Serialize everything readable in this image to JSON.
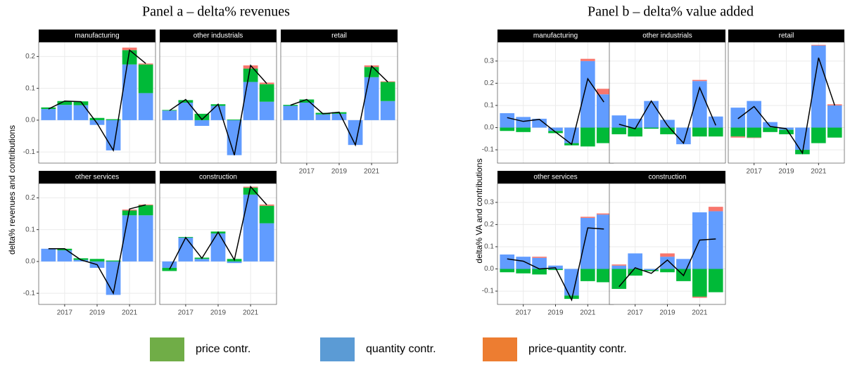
{
  "chart_data": [
    {
      "type": "bar",
      "title": "Panel a – delta% revenues",
      "y_label": "delta% revenues and contributions",
      "xlim": [
        2015.4,
        2022.6
      ],
      "xticks": [
        2017,
        2019,
        2021
      ],
      "ylim": [
        -0.135,
        0.245
      ],
      "yticks": [
        -0.1,
        {
          "value": 0,
          "label": "0.0"
        },
        0.1,
        0.2
      ],
      "grid": true,
      "facets": [
        {
          "title": "manufacturing",
          "x": [
            2016,
            2017,
            2018,
            2019,
            2020,
            2021,
            2022
          ],
          "series": [
            {
              "name": "quantity contr.",
              "color": "#619cff",
              "values": [
                0.035,
                0.048,
                0.047,
                -0.015,
                -0.095,
                0.175,
                0.085
              ]
            },
            {
              "name": "price contr.",
              "color": "#00ba38",
              "values": [
                0.005,
                0.012,
                0.012,
                0.007,
                0.003,
                0.045,
                0.09
              ]
            },
            {
              "name": "price-quantity contr.",
              "color": "#f8766d",
              "values": [
                0,
                0,
                0,
                0,
                0,
                0.008,
                0.003
              ]
            }
          ],
          "total": {
            "color": "#000000",
            "values": [
              0.035,
              0.06,
              0.058,
              -0.01,
              -0.095,
              0.22,
              0.178
            ]
          }
        },
        {
          "title": "other industrials",
          "x": [
            2016,
            2017,
            2018,
            2019,
            2020,
            2021,
            2022
          ],
          "series": [
            {
              "name": "quantity contr.",
              "color": "#619cff",
              "values": [
                0.03,
                0.055,
                -0.018,
                0.045,
                -0.11,
                0.12,
                0.058
              ]
            },
            {
              "name": "price contr.",
              "color": "#00ba38",
              "values": [
                0.002,
                0.008,
                0.02,
                0.005,
                0.002,
                0.042,
                0.055
              ]
            },
            {
              "name": "price-quantity contr.",
              "color": "#f8766d",
              "values": [
                0,
                0,
                0,
                0,
                0,
                0.01,
                0.005
              ]
            }
          ],
          "total": {
            "color": "#000000",
            "values": [
              0.03,
              0.065,
              0.002,
              0.05,
              -0.11,
              0.172,
              0.115
            ]
          }
        },
        {
          "title": "retail",
          "x": [
            2016,
            2017,
            2018,
            2019,
            2020,
            2021,
            2022
          ],
          "series": [
            {
              "name": "quantity contr.",
              "color": "#619cff",
              "values": [
                0.045,
                0.055,
                0.018,
                0.02,
                -0.078,
                0.135,
                0.06
              ]
            },
            {
              "name": "price contr.",
              "color": "#00ba38",
              "values": [
                0.003,
                0.01,
                0.005,
                0.005,
                0,
                0.032,
                0.06
              ]
            },
            {
              "name": "price-quantity contr.",
              "color": "#f8766d",
              "values": [
                0,
                0,
                0,
                0,
                0,
                0.005,
                0.002
              ]
            }
          ],
          "total": {
            "color": "#000000",
            "values": [
              0.047,
              0.065,
              0.02,
              0.025,
              -0.078,
              0.17,
              0.12
            ]
          }
        },
        {
          "title": "other services",
          "x": [
            2016,
            2017,
            2018,
            2019,
            2020,
            2021,
            2022
          ],
          "series": [
            {
              "name": "quantity contr.",
              "color": "#619cff",
              "values": [
                0.04,
                0.035,
                0.005,
                -0.02,
                -0.105,
                0.145,
                0.145
              ]
            },
            {
              "name": "price contr.",
              "color": "#00ba38",
              "values": [
                0,
                0.005,
                0.005,
                0.008,
                0.003,
                0.015,
                0.032
              ]
            },
            {
              "name": "price-quantity contr.",
              "color": "#f8766d",
              "values": [
                0,
                0,
                0,
                0,
                0,
                0.003,
                0.002
              ]
            }
          ],
          "total": {
            "color": "#000000",
            "values": [
              0.04,
              0.04,
              0.005,
              -0.01,
              -0.1,
              0.165,
              0.178
            ]
          }
        },
        {
          "title": "construction",
          "x": [
            2016,
            2017,
            2018,
            2019,
            2020,
            2021,
            2022
          ],
          "series": [
            {
              "name": "quantity contr.",
              "color": "#619cff",
              "values": [
                -0.02,
                0.075,
                0.008,
                0.088,
                -0.005,
                0.21,
                0.12
              ]
            },
            {
              "name": "price contr.",
              "color": "#00ba38",
              "values": [
                -0.01,
                0.002,
                0.004,
                0.006,
                0.008,
                0.022,
                0.055
              ]
            },
            {
              "name": "price-quantity contr.",
              "color": "#f8766d",
              "values": [
                0,
                0,
                0,
                0,
                0,
                0.003,
                0.004
              ]
            }
          ],
          "total": {
            "color": "#000000",
            "values": [
              -0.025,
              0.075,
              0.01,
              0.092,
              0.005,
              0.235,
              0.178
            ]
          }
        }
      ]
    },
    {
      "type": "bar",
      "title": "Panel b – delta% value added",
      "y_label": "delta% VA and contributions",
      "xlim": [
        2015.4,
        2022.6
      ],
      "xticks": [
        2017,
        2019,
        2021
      ],
      "ylim": [
        -0.16,
        0.385
      ],
      "yticks": [
        -0.1,
        {
          "value": 0,
          "label": "0.0"
        },
        0.1,
        0.2,
        0.3
      ],
      "grid": true,
      "facets": [
        {
          "title": "manufacturing",
          "x": [
            2016,
            2017,
            2018,
            2019,
            2020,
            2021,
            2022
          ],
          "series": [
            {
              "name": "quantity contr.",
              "color": "#619cff",
              "values": [
                0.065,
                0.048,
                0.04,
                -0.015,
                -0.07,
                0.3,
                0.15
              ]
            },
            {
              "name": "price contr.",
              "color": "#00ba38",
              "values": [
                -0.015,
                -0.02,
                0,
                -0.01,
                -0.01,
                -0.085,
                -0.07
              ]
            },
            {
              "name": "price-quantity contr.",
              "color": "#f8766d",
              "values": [
                0,
                0,
                0,
                0,
                0,
                0.01,
                0.025
              ]
            }
          ],
          "total": {
            "color": "#000000",
            "values": [
              0.045,
              0.028,
              0.037,
              -0.02,
              -0.075,
              0.22,
              0.115
            ]
          }
        },
        {
          "title": "other industrials",
          "x": [
            2016,
            2017,
            2018,
            2019,
            2020,
            2021,
            2022
          ],
          "series": [
            {
              "name": "quantity contr.",
              "color": "#619cff",
              "values": [
                0.055,
                0.04,
                0.12,
                0.035,
                -0.075,
                0.21,
                0.05
              ]
            },
            {
              "name": "price contr.",
              "color": "#00ba38",
              "values": [
                -0.03,
                -0.04,
                -0.005,
                -0.03,
                0,
                -0.04,
                -0.04
              ]
            },
            {
              "name": "price-quantity contr.",
              "color": "#f8766d",
              "values": [
                0,
                0,
                0,
                0,
                0,
                0.005,
                0
              ]
            }
          ],
          "total": {
            "color": "#000000",
            "values": [
              0.015,
              -0.005,
              0.12,
              0.01,
              -0.07,
              0.18,
              0.01
            ]
          }
        },
        {
          "title": "retail",
          "x": [
            2016,
            2017,
            2018,
            2019,
            2020,
            2021,
            2022
          ],
          "series": [
            {
              "name": "quantity contr.",
              "color": "#619cff",
              "values": [
                0.09,
                0.12,
                0.025,
                -0.01,
                -0.1,
                0.37,
                0.1
              ]
            },
            {
              "name": "price contr.",
              "color": "#00ba38",
              "values": [
                -0.04,
                -0.045,
                -0.02,
                -0.02,
                -0.02,
                -0.07,
                -0.045
              ]
            },
            {
              "name": "price-quantity contr.",
              "color": "#f8766d",
              "values": [
                -0.005,
                -0.002,
                0,
                0,
                0,
                0.003,
                0.005
              ]
            }
          ],
          "total": {
            "color": "#000000",
            "values": [
              0.04,
              0.095,
              0.005,
              -0.005,
              -0.115,
              0.315,
              0.1
            ]
          }
        },
        {
          "title": "other services",
          "x": [
            2016,
            2017,
            2018,
            2019,
            2020,
            2021,
            2022
          ],
          "series": [
            {
              "name": "quantity contr.",
              "color": "#619cff",
              "values": [
                0.065,
                0.055,
                0.05,
                0.015,
                -0.12,
                0.23,
                0.245
              ]
            },
            {
              "name": "price contr.",
              "color": "#00ba38",
              "values": [
                -0.015,
                -0.02,
                -0.025,
                -0.005,
                -0.015,
                -0.055,
                -0.06
              ]
            },
            {
              "name": "price-quantity contr.",
              "color": "#f8766d",
              "values": [
                0,
                0,
                0.005,
                0,
                0,
                0.005,
                0.005
              ]
            }
          ],
          "total": {
            "color": "#000000",
            "values": [
              0.045,
              0.035,
              0,
              0.005,
              -0.14,
              0.185,
              0.18
            ]
          }
        },
        {
          "title": "construction",
          "x": [
            2016,
            2017,
            2018,
            2019,
            2020,
            2021,
            2022
          ],
          "series": [
            {
              "name": "quantity contr.",
              "color": "#619cff",
              "values": [
                0.015,
                0.07,
                -0.005,
                0.055,
                0.045,
                0.255,
                0.26
              ]
            },
            {
              "name": "price contr.",
              "color": "#00ba38",
              "values": [
                -0.09,
                -0.03,
                -0.005,
                -0.015,
                -0.055,
                -0.125,
                -0.105
              ]
            },
            {
              "name": "price-quantity contr.",
              "color": "#f8766d",
              "values": [
                0.005,
                0,
                0,
                0.015,
                0,
                -0.005,
                0.02
              ]
            }
          ],
          "total": {
            "color": "#000000",
            "values": [
              -0.08,
              0.005,
              -0.02,
              0.04,
              -0.03,
              0.13,
              0.135
            ]
          }
        }
      ]
    }
  ],
  "legend_colors": [
    "#70ad47",
    "#5b9bd5",
    "#ed7d31"
  ]
}
